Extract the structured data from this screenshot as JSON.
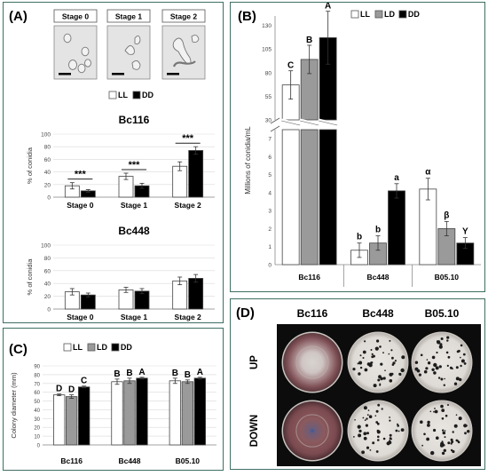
{
  "panels": {
    "A": {
      "label": "(A)",
      "stage_boxes": [
        "Stage 0",
        "Stage 1",
        "Stage 2"
      ],
      "legend": [
        "LL",
        "DD"
      ],
      "colors": {
        "LL": "#ffffff",
        "DD": "#000000"
      }
    },
    "B": {
      "label": "(B)",
      "legend": [
        "LL",
        "LD",
        "DD"
      ]
    },
    "C": {
      "label": "(C)",
      "legend": [
        "LL",
        "LD",
        "DD"
      ]
    },
    "D": {
      "label": "(D)",
      "columns": [
        "Bc116",
        "Bc448",
        "B05.10"
      ],
      "rows": [
        "UP",
        "DOWN"
      ]
    }
  },
  "chart_data": [
    {
      "id": "A1",
      "type": "bar",
      "title": "Bc116",
      "ylabel": "% of conidia",
      "ylim": [
        0,
        100
      ],
      "yticks": [
        0,
        20,
        40,
        60,
        80,
        100
      ],
      "categories": [
        "Stage 0",
        "Stage 1",
        "Stage 2"
      ],
      "series": [
        {
          "name": "LL",
          "values": [
            18,
            33,
            49
          ],
          "errors": [
            5,
            5,
            7
          ]
        },
        {
          "name": "DD",
          "values": [
            10,
            18,
            74
          ],
          "errors": [
            2,
            4,
            6
          ]
        }
      ],
      "annotations": [
        "***",
        "***",
        "***"
      ]
    },
    {
      "id": "A2",
      "type": "bar",
      "title": "Bc448",
      "ylabel": "% of conidia",
      "ylim": [
        0,
        100
      ],
      "yticks": [
        0,
        20,
        40,
        60,
        80,
        100
      ],
      "categories": [
        "Stage 0",
        "Stage 1",
        "Stage 2"
      ],
      "series": [
        {
          "name": "LL",
          "values": [
            27,
            30,
            44
          ],
          "errors": [
            5,
            4,
            6
          ]
        },
        {
          "name": "DD",
          "values": [
            22,
            28,
            48
          ],
          "errors": [
            3,
            4,
            6
          ]
        }
      ]
    },
    {
      "id": "B",
      "type": "bar",
      "ylabel": "Millions of conidia/mL",
      "categories": [
        "Bc116",
        "Bc448",
        "B05.10"
      ],
      "lower_yticks": [
        0,
        1,
        2,
        3,
        4,
        5,
        6,
        7
      ],
      "upper_yticks": [
        30,
        55,
        80,
        105,
        130
      ],
      "axis_break": true,
      "series": [
        {
          "name": "LL",
          "values": [
            67,
            0.8,
            4.2
          ],
          "errors": [
            15,
            0.4,
            0.6
          ]
        },
        {
          "name": "LD",
          "values": [
            94,
            1.2,
            2.0
          ],
          "errors": [
            15,
            0.4,
            0.4
          ]
        },
        {
          "name": "DD",
          "values": [
            117,
            4.1,
            1.2
          ],
          "errors": [
            28,
            0.4,
            0.3
          ]
        }
      ],
      "letters": [
        [
          "C",
          "B",
          "A"
        ],
        [
          "b",
          "b",
          "a"
        ],
        [
          "α",
          "β",
          "Υ"
        ]
      ]
    },
    {
      "id": "C",
      "type": "bar",
      "ylabel": "Colony diameter (mm)",
      "ylim": [
        0,
        90
      ],
      "yticks": [
        0,
        10,
        20,
        30,
        40,
        50,
        60,
        70,
        80,
        90
      ],
      "categories": [
        "Bc116",
        "Bc448",
        "B05.10"
      ],
      "series": [
        {
          "name": "LL",
          "values": [
            57,
            72,
            73
          ],
          "errors": [
            1,
            3,
            3
          ]
        },
        {
          "name": "LD",
          "values": [
            55,
            73,
            72
          ],
          "errors": [
            2,
            3,
            2
          ]
        },
        {
          "name": "DD",
          "values": [
            66,
            76,
            76
          ],
          "errors": [
            1,
            1,
            1
          ]
        }
      ],
      "letters": [
        [
          "D",
          "D",
          "C"
        ],
        [
          "B",
          "B",
          "A"
        ],
        [
          "B",
          "B",
          "A"
        ]
      ]
    }
  ]
}
